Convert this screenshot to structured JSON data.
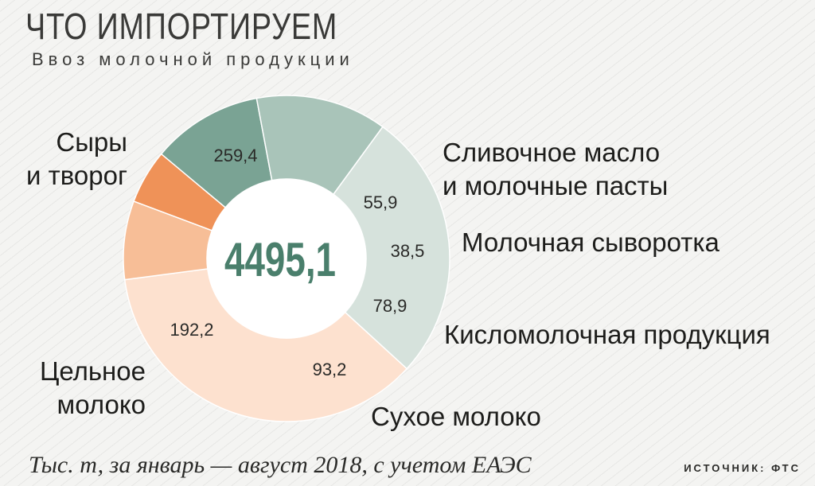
{
  "header": {
    "title": "ЧТО ИМПОРТИРУЕМ",
    "subtitle": "Ввоз молочной продукции"
  },
  "footer": {
    "note": "Тыс. т, за январь — август 2018, с учетом ЕАЭС",
    "source": "ИСТОЧНИК: ФТС"
  },
  "colors": {
    "center_text": "#4a7f6c",
    "center_fill": "#ffffff"
  },
  "chart_data": {
    "type": "pie",
    "style": "donut",
    "title": "ЧТО ИМПОРТИРУЕМ",
    "subtitle": "Ввоз молочной продукции",
    "total_label": "4495,1",
    "slices": [
      {
        "label": [
          "Сыры",
          "и творог"
        ],
        "value": 259.4,
        "value_label": "259,4",
        "color": "#fde1cf"
      },
      {
        "label": [
          "Сливочное масло",
          "и молочные пасты"
        ],
        "value": 55.9,
        "value_label": "55,9",
        "color": "#f7be97"
      },
      {
        "label": [
          "Молочная сыворотка"
        ],
        "value": 38.5,
        "value_label": "38,5",
        "color": "#ef9258"
      },
      {
        "label": [
          "Кисломолочная продукция"
        ],
        "value": 78.9,
        "value_label": "78,9",
        "color": "#7aa394"
      },
      {
        "label": [
          "Сухое молоко"
        ],
        "value": 93.2,
        "value_label": "93,2",
        "color": "#a9c4b9"
      },
      {
        "label": [
          "Цельное",
          "молоко"
        ],
        "value": 192.2,
        "value_label": "192,2",
        "color": "#d6e2dc"
      }
    ]
  }
}
